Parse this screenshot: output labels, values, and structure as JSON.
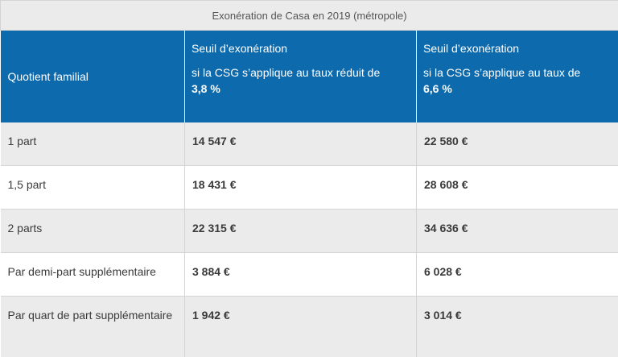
{
  "caption": "Exonération de Casa en 2019 (métropole)",
  "header": {
    "col1": "Quotient familial",
    "col2_title": "Seuil d’exonération",
    "col2_sub": "si la CSG s’applique au taux réduit de",
    "col2_rate": "3,8 %",
    "col3_title": "Seuil d’exonération",
    "col3_sub": "si la CSG s’applique au taux de",
    "col3_rate": "6,6 %"
  },
  "rows": [
    {
      "label": "1 part",
      "reduced": "14 547 €",
      "full": "22 580 €"
    },
    {
      "label": "1,5 part",
      "reduced": "18 431 €",
      "full": "28 608 €"
    },
    {
      "label": "2 parts",
      "reduced": "22 315 €",
      "full": "34 636 €"
    },
    {
      "label": "Par demi-part supplémentaire",
      "reduced": "3 884 €",
      "full": "6 028 €"
    },
    {
      "label": "Par quart de part supplémentaire",
      "reduced": "1 942 €",
      "full": "3 014 €"
    }
  ]
}
